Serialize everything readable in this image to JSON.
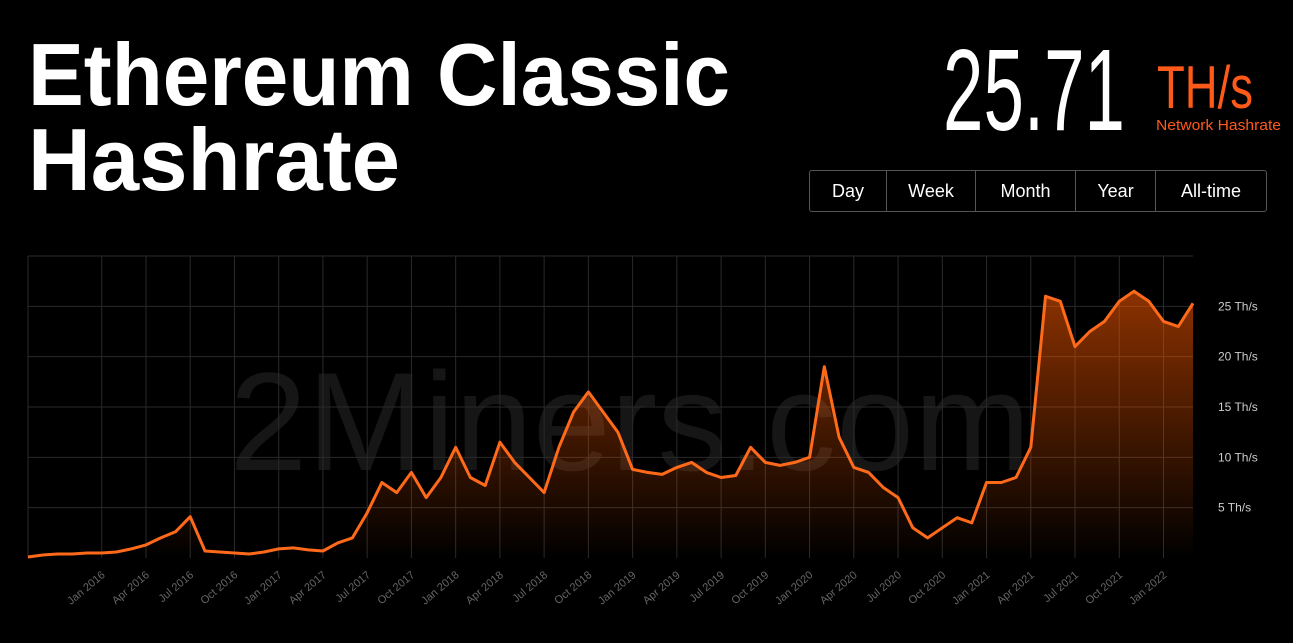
{
  "header": {
    "title": [
      "Ethereum Classic",
      "Hashrate"
    ],
    "hashrate": {
      "value": 25.71,
      "unit": "TH/s",
      "label": "Network Hashrate"
    }
  },
  "range_buttons": [
    "Day",
    "Week",
    "Month",
    "Year",
    "All-time"
  ],
  "chart_data": {
    "type": "area",
    "watermark": "2Miners.com",
    "color": "#ff6a1a",
    "grid": true,
    "x": [
      "2015-08",
      "2015-09",
      "2015-10",
      "2015-11",
      "2015-12",
      "2016-01",
      "2016-02",
      "2016-03",
      "2016-04",
      "2016-05",
      "2016-06",
      "2016-07",
      "2016-08",
      "2016-09",
      "2016-10",
      "2016-11",
      "2016-12",
      "2017-01",
      "2017-02",
      "2017-03",
      "2017-04",
      "2017-05",
      "2017-06",
      "2017-07",
      "2017-08",
      "2017-09",
      "2017-10",
      "2017-11",
      "2017-12",
      "2018-01",
      "2018-02",
      "2018-03",
      "2018-04",
      "2018-05",
      "2018-06",
      "2018-07",
      "2018-08",
      "2018-09",
      "2018-10",
      "2018-11",
      "2018-12",
      "2019-01",
      "2019-02",
      "2019-03",
      "2019-04",
      "2019-05",
      "2019-06",
      "2019-07",
      "2019-08",
      "2019-09",
      "2019-10",
      "2019-11",
      "2019-12",
      "2020-01",
      "2020-02",
      "2020-03",
      "2020-04",
      "2020-05",
      "2020-06",
      "2020-07",
      "2020-08",
      "2020-09",
      "2020-10",
      "2020-11",
      "2020-12",
      "2021-01",
      "2021-02",
      "2021-03",
      "2021-04",
      "2021-05",
      "2021-06",
      "2021-07",
      "2021-08",
      "2021-09",
      "2021-10",
      "2021-11",
      "2021-12",
      "2022-01",
      "2022-02",
      "2022-03"
    ],
    "values": [
      0.1,
      0.3,
      0.4,
      0.4,
      0.5,
      0.5,
      0.6,
      0.9,
      1.3,
      2.0,
      2.6,
      4.1,
      0.7,
      0.6,
      0.5,
      0.4,
      0.6,
      0.9,
      1.0,
      0.8,
      0.7,
      1.5,
      2.0,
      4.5,
      7.5,
      6.5,
      8.5,
      6.0,
      8.0,
      11.0,
      8.0,
      7.2,
      11.5,
      9.5,
      8.0,
      6.5,
      11.0,
      14.5,
      16.5,
      14.5,
      12.5,
      8.8,
      8.5,
      8.3,
      9.0,
      9.5,
      8.5,
      8.0,
      8.2,
      11.0,
      9.5,
      9.2,
      9.5,
      10.0,
      19.0,
      12.0,
      9.0,
      8.5,
      7.0,
      6.0,
      3.0,
      2.0,
      3.0,
      4.0,
      3.5,
      7.5,
      7.5,
      8.0,
      11.0,
      26.0,
      25.5,
      21.0,
      22.5,
      23.5,
      25.5,
      26.5,
      25.5,
      23.5,
      23.0,
      25.3
    ],
    "xlim": [
      "2015-08",
      "2022-03"
    ],
    "xticks": [
      {
        "value": "2016-01",
        "label": "Jan 2016"
      },
      {
        "value": "2016-04",
        "label": "Apr 2016"
      },
      {
        "value": "2016-07",
        "label": "Jul 2016"
      },
      {
        "value": "2016-10",
        "label": "Oct 2016"
      },
      {
        "value": "2017-01",
        "label": "Jan 2017"
      },
      {
        "value": "2017-04",
        "label": "Apr 2017"
      },
      {
        "value": "2017-07",
        "label": "Jul 2017"
      },
      {
        "value": "2017-10",
        "label": "Oct 2017"
      },
      {
        "value": "2018-01",
        "label": "Jan 2018"
      },
      {
        "value": "2018-04",
        "label": "Apr 2018"
      },
      {
        "value": "2018-07",
        "label": "Jul 2018"
      },
      {
        "value": "2018-10",
        "label": "Oct 2018"
      },
      {
        "value": "2019-01",
        "label": "Jan 2019"
      },
      {
        "value": "2019-04",
        "label": "Apr 2019"
      },
      {
        "value": "2019-07",
        "label": "Jul 2019"
      },
      {
        "value": "2019-10",
        "label": "Oct 2019"
      },
      {
        "value": "2020-01",
        "label": "Jan 2020"
      },
      {
        "value": "2020-04",
        "label": "Apr 2020"
      },
      {
        "value": "2020-07",
        "label": "Jul 2020"
      },
      {
        "value": "2020-10",
        "label": "Oct 2020"
      },
      {
        "value": "2021-01",
        "label": "Jan 2021"
      },
      {
        "value": "2021-04",
        "label": "Apr 2021"
      },
      {
        "value": "2021-07",
        "label": "Jul 2021"
      },
      {
        "value": "2021-10",
        "label": "Oct 2021"
      },
      {
        "value": "2022-01",
        "label": "Jan 2022"
      }
    ],
    "ylim": [
      0,
      30
    ],
    "yticks": [
      {
        "value": 5,
        "label": "5 Th/s"
      },
      {
        "value": 10,
        "label": "10 Th/s"
      },
      {
        "value": 15,
        "label": "15 Th/s"
      },
      {
        "value": 20,
        "label": "20 Th/s"
      },
      {
        "value": 25,
        "label": "25 Th/s"
      }
    ]
  }
}
